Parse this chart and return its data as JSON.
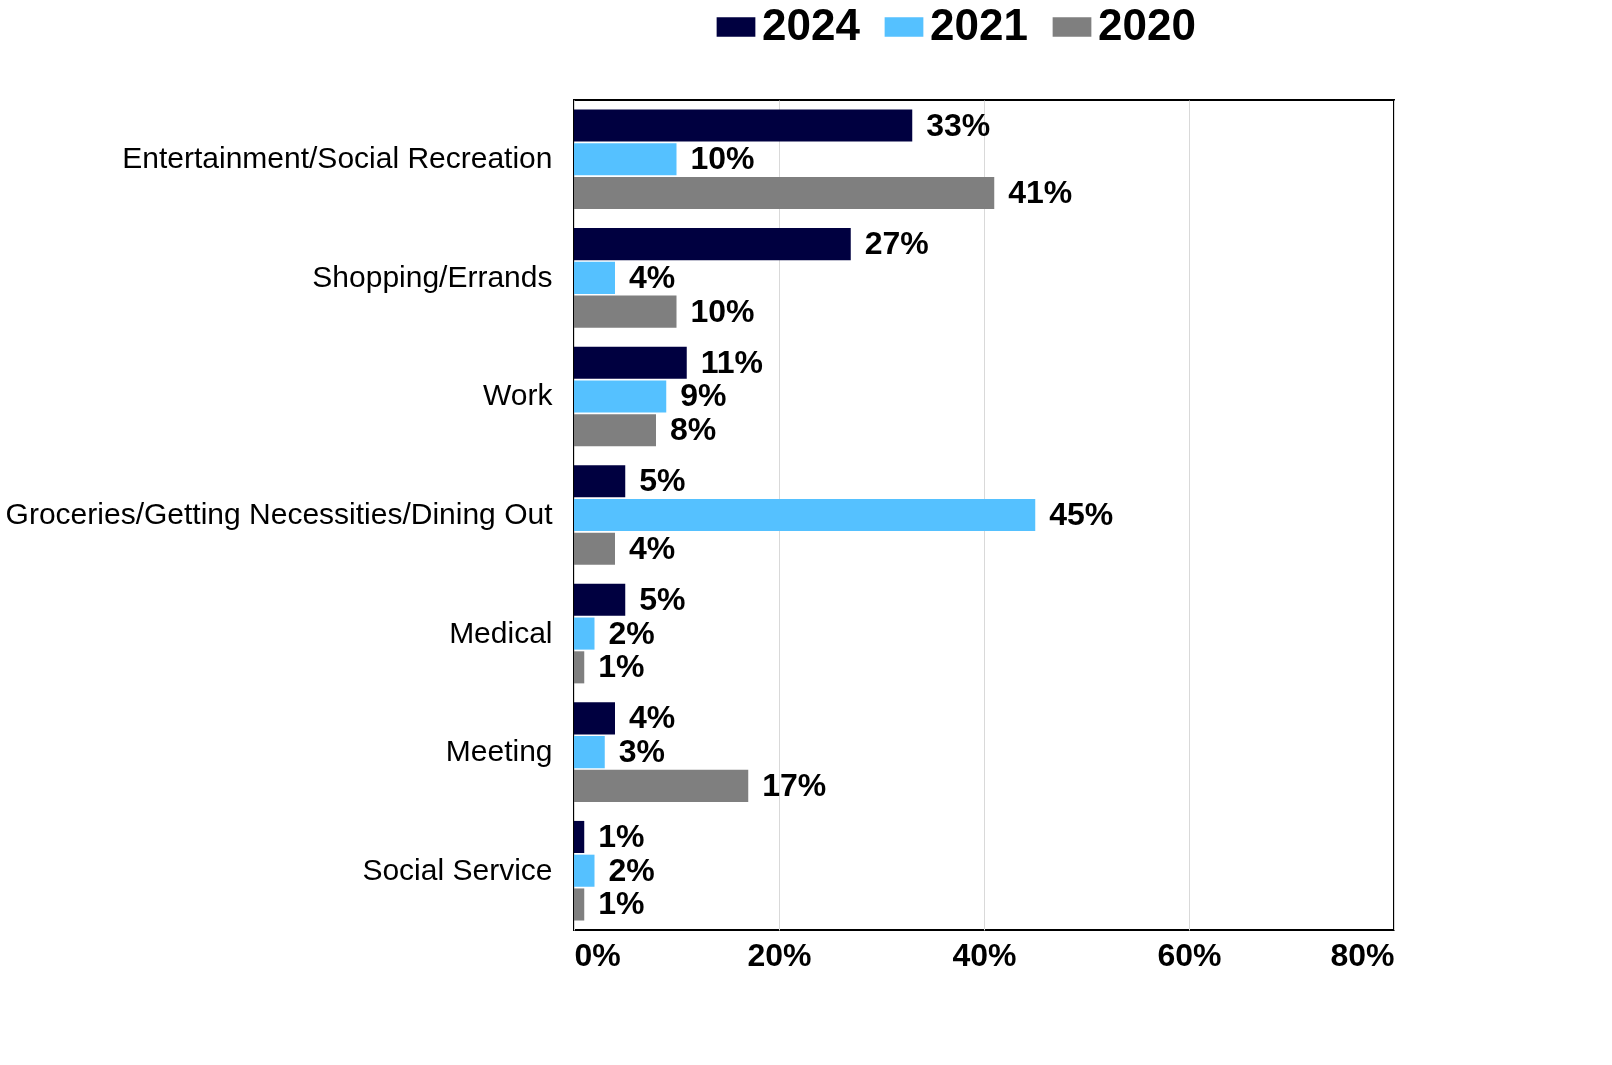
{
  "chart_data": {
    "type": "bar",
    "orientation": "horizontal",
    "categories": [
      "Entertainment/Social Recreation",
      "Shopping/Errands",
      "Work",
      "Groceries/Getting Necessities/Dining Out",
      "Medical",
      "Meeting",
      "Social Service"
    ],
    "series": [
      {
        "name": "2024",
        "color": "#000040",
        "values": [
          33,
          27,
          11,
          5,
          5,
          4,
          1
        ],
        "value_labels": [
          "33%",
          "27%",
          "11%",
          "5%",
          "5%",
          "4%",
          "1%"
        ]
      },
      {
        "name": "2021",
        "color": "#55c1ff",
        "values": [
          10,
          4,
          9,
          45,
          2,
          3,
          2
        ],
        "value_labels": [
          "10%",
          "4%",
          "9%",
          "45%",
          "2%",
          "3%",
          "2%"
        ]
      },
      {
        "name": "2020",
        "color": "#7f7f7f",
        "values": [
          41,
          10,
          8,
          4,
          1,
          17,
          1
        ],
        "value_labels": [
          "41%",
          "10%",
          "8%",
          "4%",
          "1%",
          "17%",
          "1%"
        ]
      }
    ],
    "xlim": [
      0,
      80
    ],
    "xticks": [
      {
        "value": 0,
        "label": "0%"
      },
      {
        "value": 20,
        "label": "20%"
      },
      {
        "value": 40,
        "label": "40%"
      },
      {
        "value": 60,
        "label": "60%"
      },
      {
        "value": 80,
        "label": "80%"
      }
    ],
    "grid": "x",
    "legend": "top right"
  }
}
